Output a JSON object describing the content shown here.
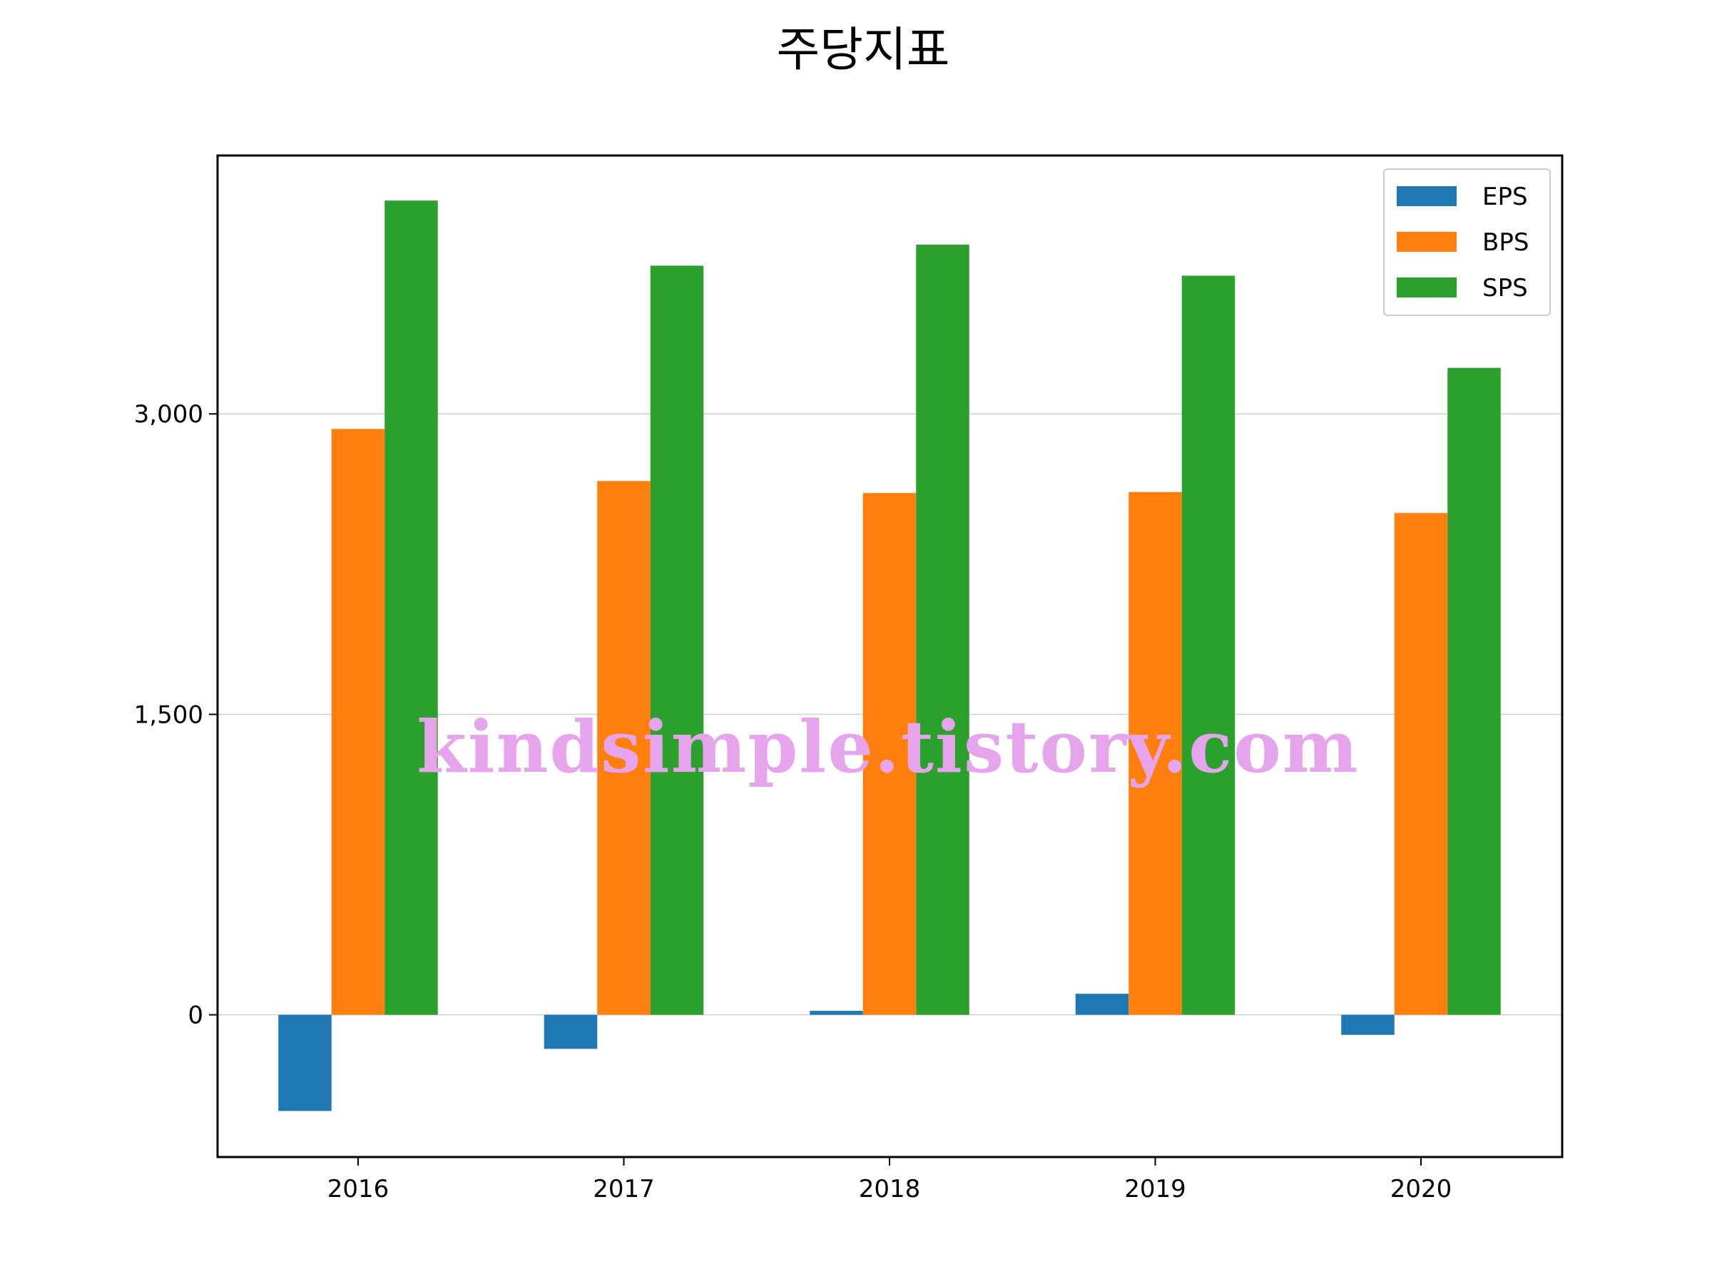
{
  "chart_data": {
    "type": "bar",
    "title": "주당지표",
    "xlabel": "",
    "ylabel": "",
    "categories": [
      "2016",
      "2017",
      "2018",
      "2019",
      "2020"
    ],
    "series": [
      {
        "name": "EPS",
        "color": "#1f77b4",
        "values": [
          -480,
          -170,
          20,
          105,
          -100
        ]
      },
      {
        "name": "BPS",
        "color": "#ff7f0e",
        "values": [
          2925,
          2665,
          2605,
          2610,
          2505
        ]
      },
      {
        "name": "SPS",
        "color": "#2ca02c",
        "values": [
          4065,
          3740,
          3845,
          3690,
          3230
        ]
      }
    ],
    "ylim": [
      -710,
      4290
    ],
    "yticks": [
      0,
      1500,
      3000
    ],
    "ytick_labels": [
      "0",
      "1,500",
      "3,000"
    ],
    "grid": "horizontal",
    "legend_position": "top-right"
  },
  "watermark": "kindsimple.tistory.com"
}
